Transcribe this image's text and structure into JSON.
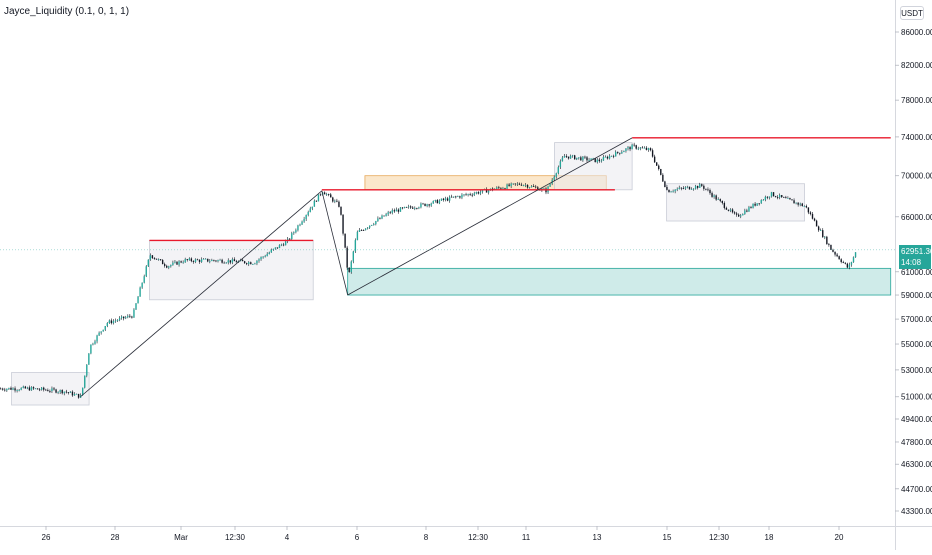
{
  "indicator": {
    "label": "Jayce_Liquidity (0.1, 0, 1, 1)"
  },
  "currency": "USDT",
  "last_price": {
    "value": "62951.36",
    "countdown": "14:08",
    "color": "#26a69a"
  },
  "colors": {
    "up": "#26a69a",
    "down": "#ef5350",
    "candle_body": "#131722",
    "liquidity_line": "#e8192c",
    "supply_zone": "#f7c98b",
    "demand_zone": "#26a69a",
    "consolidation_box": "#e9eaef"
  },
  "chart_data": {
    "type": "candlestick",
    "y_axis": {
      "ticks": [
        86000,
        82000,
        78000,
        74000,
        70000,
        66000,
        61000,
        59000,
        57000,
        55000,
        53000,
        51000,
        49400,
        47800,
        46300,
        44700,
        43300
      ],
      "tick_labels": [
        "86000.00",
        "82000.00",
        "78000.00",
        "74000.00",
        "70000.00",
        "66000.00",
        "61000.00",
        "59000.00",
        "57000.00",
        "55000.00",
        "53000.00",
        "51000.00",
        "49400.00",
        "47800.00",
        "46300.00",
        "44700.00",
        "43300.00"
      ],
      "scale": "log"
    },
    "x_axis": {
      "tick_labels": [
        "26",
        "28",
        "Mar",
        "12:30",
        "4",
        "6",
        "8",
        "12:30",
        "11",
        "13",
        "15",
        "12:30",
        "18",
        "20"
      ]
    },
    "price_path": [
      {
        "t": "2024-02-25T12:00",
        "price": 51600
      },
      {
        "t": "2024-02-26T12:00",
        "price": 51400
      },
      {
        "t": "2024-02-27T00:00",
        "price": 51000
      },
      {
        "t": "2024-02-27T06:00",
        "price": 54800
      },
      {
        "t": "2024-02-27T18:00",
        "price": 56700
      },
      {
        "t": "2024-02-28T12:00",
        "price": 57300
      },
      {
        "t": "2024-02-29T00:00",
        "price": 62500
      },
      {
        "t": "2024-02-29T12:00",
        "price": 61500
      },
      {
        "t": "2024-03-01T00:00",
        "price": 62000
      },
      {
        "t": "2024-03-02T00:00",
        "price": 62000
      },
      {
        "t": "2024-03-03T00:00",
        "price": 61800
      },
      {
        "t": "2024-03-04T00:00",
        "price": 63800
      },
      {
        "t": "2024-03-05T00:00",
        "price": 68500
      },
      {
        "t": "2024-03-05T12:00",
        "price": 67000
      },
      {
        "t": "2024-03-05T18:00",
        "price": 60500
      },
      {
        "t": "2024-03-06T00:00",
        "price": 64500
      },
      {
        "t": "2024-03-07T00:00",
        "price": 66500
      },
      {
        "t": "2024-03-08T00:00",
        "price": 67200
      },
      {
        "t": "2024-03-09T00:00",
        "price": 68000
      },
      {
        "t": "2024-03-10T00:00",
        "price": 68700
      },
      {
        "t": "2024-03-10T18:00",
        "price": 69200
      },
      {
        "t": "2024-03-11T12:00",
        "price": 68500
      },
      {
        "t": "2024-03-12T00:00",
        "price": 72000
      },
      {
        "t": "2024-03-13T00:00",
        "price": 71500
      },
      {
        "t": "2024-03-14T00:00",
        "price": 73000
      },
      {
        "t": "2024-03-14T12:00",
        "price": 72600
      },
      {
        "t": "2024-03-15T00:00",
        "price": 68500
      },
      {
        "t": "2024-03-16T00:00",
        "price": 69000
      },
      {
        "t": "2024-03-17T00:00",
        "price": 66000
      },
      {
        "t": "2024-03-18T00:00",
        "price": 68200
      },
      {
        "t": "2024-03-19T00:00",
        "price": 67000
      },
      {
        "t": "2024-03-19T18:00",
        "price": 63000
      },
      {
        "t": "2024-03-20T06:00",
        "price": 61300
      },
      {
        "t": "2024-03-20T12:00",
        "price": 62950
      }
    ],
    "liquidity_lines": [
      {
        "price": 63800,
        "from": "2024-02-29T00:00",
        "to": "2024-03-04T18:00"
      },
      {
        "price": 68600,
        "from": "2024-03-05T00:00",
        "to": "2024-03-13T12:00"
      },
      {
        "price": 73900,
        "from": "2024-03-14T00:00",
        "to": "2024-03-21T12:00"
      }
    ],
    "zones": [
      {
        "kind": "consolidation",
        "from": "2024-02-25T00:00",
        "to": "2024-02-27T06:00",
        "top": 52800,
        "bottom": 50400
      },
      {
        "kind": "consolidation",
        "from": "2024-02-29T00:00",
        "to": "2024-03-04T18:00",
        "top": 63800,
        "bottom": 58600
      },
      {
        "kind": "supply",
        "from": "2024-03-06T06:00",
        "to": "2024-03-13T06:00",
        "top": 70000,
        "bottom": 68600
      },
      {
        "kind": "consolidation",
        "from": "2024-03-11T18:00",
        "to": "2024-03-14T00:00",
        "top": 73400,
        "bottom": 68600
      },
      {
        "kind": "consolidation",
        "from": "2024-03-15T00:00",
        "to": "2024-03-19T00:00",
        "top": 69200,
        "bottom": 65600
      },
      {
        "kind": "demand",
        "from": "2024-03-05T18:00",
        "to": "2024-03-21T12:00",
        "top": 61300,
        "bottom": 59000
      }
    ],
    "trend_lines": [
      {
        "from": {
          "t": "2024-02-27T00:00",
          "price": 51000
        },
        "to": {
          "t": "2024-03-05T00:00",
          "price": 68500
        }
      },
      {
        "from": {
          "t": "2024-03-05T00:00",
          "price": 68500
        },
        "to": {
          "t": "2024-03-05T18:00",
          "price": 59000
        }
      },
      {
        "from": {
          "t": "2024-03-05T18:00",
          "price": 59000
        },
        "to": {
          "t": "2024-03-14T00:00",
          "price": 73900
        }
      }
    ]
  }
}
